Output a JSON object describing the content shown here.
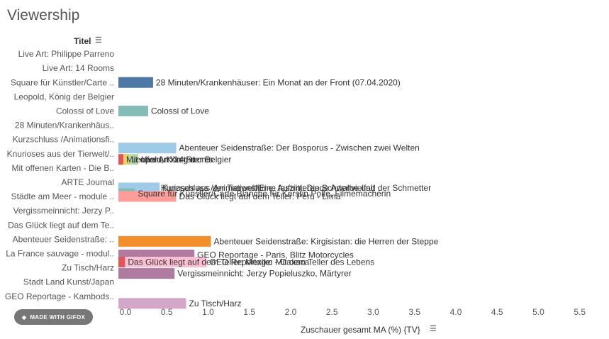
{
  "page": {
    "title": "Viewership",
    "badge": "MADE WITH GIFOX"
  },
  "chart_data": {
    "type": "bar",
    "orientation": "horizontal",
    "title": "Viewership",
    "ylabel": "Titel",
    "xlabel": "Zuschauer gesamt MA (%) {TV}",
    "xlim": [
      0,
      5.7
    ],
    "xticks": [
      "0.0",
      "0.5",
      "1.0",
      "1.5",
      "2.0",
      "2.5",
      "3.0",
      "3.5",
      "4.0",
      "4.5",
      "5.0",
      "5.5"
    ],
    "grid": false,
    "categories": [
      "Live Art: Philippe Parreno",
      "Live Art: 14 Rooms",
      "Square für Künstler/Carte ..",
      "Leopold, König der Belgier",
      "Colossi of Love",
      "28 Minuten/Krankenhäus..",
      "Kurzschluss /Animationsfi..",
      "Knurioses aus der Tierwelt/..",
      "Mit offenen Karten - Die B..",
      "ARTE Journal",
      "Städte am Meer - module ..",
      "Vergissmeinnicht: Jerzy P..",
      "Das Glück liegt auf dem Te..",
      "Abenteuer Seidenstraße: ..",
      "La France sauvage - modul..",
      "Zu Tisch/Harz",
      "Stadt Land Kunst/Japan",
      "GEO Reportage - Kambods.."
    ],
    "bars": [
      {
        "pos": 2.5,
        "value": 0.42,
        "color": "#4e79a7",
        "label": "28 Minuten/Krankenhäuser: Ein Monat an der Front (07.04.2020)"
      },
      {
        "pos": 4.5,
        "value": 0.36,
        "color": "#86bcb6",
        "label": "Colossi of Love"
      },
      {
        "pos": 7.1,
        "value": 0.7,
        "color": "#a0cbe8",
        "label": "Abenteuer Seidenstraße: Der Bosporus - Zwischen zwei Welten"
      },
      {
        "pos": 7.9,
        "value": 0.24,
        "color": "#b6d7a8",
        "label": "Live Art: 14 Rooms"
      },
      {
        "pos": 7.9,
        "value": 0.12,
        "color": "#f1ce63",
        "label": "Leopold, König der Belgier"
      },
      {
        "pos": 7.9,
        "value": 0.06,
        "color": "#e15759",
        "label": "Mit offenen Karten"
      },
      {
        "pos": 9.9,
        "value": 0.48,
        "color": "#4e79a7",
        "label": "Kurioses aus der Tierwelt/Eine faszinierende Artenvielfalt"
      },
      {
        "pos": 9.9,
        "value": 0.5,
        "color": "#a0cbe8",
        "label": "Kurzschluss /Animationsfilme: Auftritt: Die Schwalbe und der Schmetter"
      },
      {
        "pos": 10.3,
        "value": 0.2,
        "color": "#86bcb6",
        "label": "Square für Künstler/Carte Blanche für Kerstin Polte, Filmemacherin"
      },
      {
        "pos": 10.5,
        "value": 0.7,
        "color": "#ff9d9a",
        "label": "Das Glück liegt auf dem Teller: Peru - Lima"
      },
      {
        "pos": 13.65,
        "value": 1.12,
        "color": "#f28e2b",
        "label": "Abenteuer Seidenstraße: Kirgisistan: die Herren der Steppe"
      },
      {
        "pos": 14.6,
        "value": 0.92,
        "color": "#b07aa1",
        "label": "GEO Reportage - Paris, Blitz Motorcycles"
      },
      {
        "pos": 15.1,
        "value": 1.07,
        "color": "#fabfd2",
        "label": "GEO Reportage: Mit dem Teller des Lebens"
      },
      {
        "pos": 15.1,
        "value": 0.08,
        "color": "#e15759",
        "label": "Das Glück liegt auf dem Teller: Mexiko - Oaxaca"
      },
      {
        "pos": 15.9,
        "value": 0.68,
        "color": "#b07aa1",
        "label": "Vergissmeinnicht: Jerzy Popieluszko, Märtyrer"
      },
      {
        "pos": 18.0,
        "value": 0.82,
        "color": "#d4a6c8",
        "label": "Zu Tisch/Harz"
      }
    ]
  }
}
